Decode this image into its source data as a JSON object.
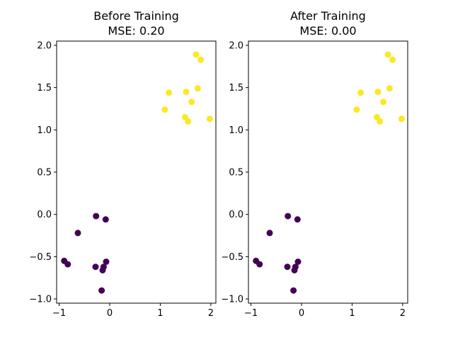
{
  "chart_data": [
    {
      "type": "scatter",
      "title": "Before Training",
      "subtitle": "MSE: 0.20",
      "xlim": [
        -1.05,
        2.1
      ],
      "ylim": [
        -1.05,
        2.05
      ],
      "xticks": [
        -1,
        0,
        1,
        2
      ],
      "xtick_labels": [
        "−1",
        "0",
        "1",
        "2"
      ],
      "yticks": [
        -1.0,
        -0.5,
        0.0,
        0.5,
        1.0,
        1.5,
        2.0
      ],
      "ytick_labels": [
        "−1.0",
        "−0.5",
        "0.0",
        "0.5",
        "1.0",
        "1.5",
        "2.0"
      ],
      "grid": false,
      "series": [
        {
          "color": "#440154",
          "x": [
            -0.9,
            -0.83,
            -0.63,
            -0.27,
            -0.28,
            -0.08,
            -0.07,
            -0.12,
            -0.14,
            -0.16
          ],
          "y": [
            -0.55,
            -0.59,
            -0.22,
            -0.02,
            -0.62,
            -0.06,
            -0.56,
            -0.62,
            -0.66,
            -0.9
          ]
        },
        {
          "color": "#fde725",
          "x": [
            1.71,
            1.8,
            1.17,
            1.51,
            1.74,
            1.62,
            1.09,
            1.49,
            1.55,
            1.98
          ],
          "y": [
            1.89,
            1.83,
            1.44,
            1.45,
            1.49,
            1.33,
            1.24,
            1.15,
            1.1,
            1.13
          ]
        }
      ]
    },
    {
      "type": "scatter",
      "title": "After Training",
      "subtitle": "MSE: 0.00",
      "xlim": [
        -1.05,
        2.1
      ],
      "ylim": [
        -1.05,
        2.05
      ],
      "xticks": [
        -1,
        0,
        1,
        2
      ],
      "xtick_labels": [
        "−1",
        "0",
        "1",
        "2"
      ],
      "yticks": [
        -1.0,
        -0.5,
        0.0,
        0.5,
        1.0,
        1.5,
        2.0
      ],
      "ytick_labels": [
        "−1.0",
        "−0.5",
        "0.0",
        "0.5",
        "1.0",
        "1.5",
        "2.0"
      ],
      "grid": false,
      "series": [
        {
          "color": "#440154",
          "x": [
            -0.9,
            -0.83,
            -0.63,
            -0.27,
            -0.28,
            -0.08,
            -0.07,
            -0.12,
            -0.14,
            -0.16
          ],
          "y": [
            -0.55,
            -0.59,
            -0.22,
            -0.02,
            -0.62,
            -0.06,
            -0.56,
            -0.62,
            -0.66,
            -0.9
          ]
        },
        {
          "color": "#fde725",
          "x": [
            1.71,
            1.8,
            1.17,
            1.51,
            1.74,
            1.62,
            1.09,
            1.49,
            1.55,
            1.98
          ],
          "y": [
            1.89,
            1.83,
            1.44,
            1.45,
            1.49,
            1.33,
            1.24,
            1.15,
            1.1,
            1.13
          ]
        }
      ]
    }
  ]
}
